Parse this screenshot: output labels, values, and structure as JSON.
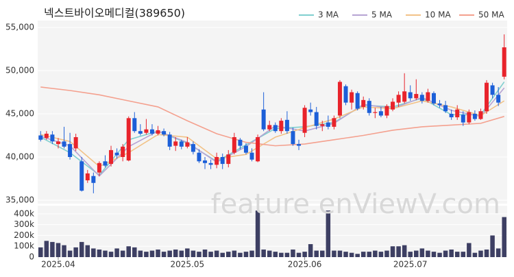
{
  "title": "넥스트바이오메디컬(389650)",
  "watermark": "feature.enViewV.com",
  "chart_data": [
    {
      "type": "candlestick",
      "up_color": "#e8232b",
      "down_color": "#1c5fd8",
      "ylim": [
        34600,
        55800
      ],
      "yticks": [
        {
          "value": 35000,
          "label": "35,000"
        },
        {
          "value": 40000,
          "label": "40,000"
        },
        {
          "value": 45000,
          "label": "45,000"
        },
        {
          "value": 50000,
          "label": "50,000"
        },
        {
          "value": 55000,
          "label": "55,000"
        }
      ],
      "grid": true,
      "legend": "top-right",
      "open": [
        42500,
        42200,
        42600,
        41500,
        41800,
        41500,
        41000,
        39500,
        37300,
        37800,
        38200,
        39500,
        39200,
        40500,
        40000,
        39600,
        44500,
        43000,
        42800,
        43200,
        42700,
        43000,
        42600,
        41300,
        41800,
        41200,
        41500,
        40500,
        39600,
        39300,
        39100,
        40000,
        39200,
        40500,
        42000,
        41300,
        40500,
        39500,
        45500,
        43200,
        43700,
        43000,
        44300,
        43000,
        41500,
        42800,
        45500,
        45200,
        43600,
        44000,
        43500,
        44800,
        48200,
        46300,
        47400,
        45800,
        46500,
        45100,
        45300,
        44800,
        45500,
        46300,
        46400,
        47500,
        46800,
        47200,
        46500,
        47400,
        46200,
        46000,
        45000,
        44600,
        44900,
        44000,
        45000,
        44400,
        45300,
        48300,
        47200,
        49300
      ],
      "high": [
        43000,
        43000,
        43000,
        42200,
        43500,
        42800,
        42700,
        40000,
        38500,
        38200,
        39500,
        40200,
        41300,
        41000,
        41500,
        44700,
        45200,
        43800,
        44400,
        43800,
        43600,
        43300,
        42900,
        42300,
        42000,
        42300,
        41800,
        40900,
        40000,
        39700,
        40500,
        40400,
        40800,
        42800,
        42200,
        41600,
        41000,
        42600,
        47500,
        44200,
        44000,
        44500,
        45300,
        43400,
        42000,
        46000,
        46300,
        45800,
        44200,
        44800,
        44800,
        48900,
        48400,
        47800,
        47600,
        47000,
        46800,
        45700,
        45800,
        46100,
        46800,
        47600,
        49700,
        48300,
        49000,
        47500,
        47900,
        47600,
        46600,
        46500,
        45500,
        46000,
        45300,
        45500,
        45400,
        45600,
        48900,
        48600,
        48100,
        54200
      ],
      "low": [
        41800,
        42000,
        41500,
        41000,
        41000,
        39700,
        40700,
        36000,
        37000,
        35800,
        37800,
        38800,
        38900,
        39800,
        39500,
        39500,
        42800,
        42500,
        42600,
        42500,
        42500,
        42400,
        40800,
        40700,
        40900,
        41000,
        40300,
        39300,
        38600,
        38600,
        38700,
        38600,
        38800,
        40300,
        40900,
        40300,
        39500,
        39400,
        43000,
        43000,
        42800,
        42700,
        42700,
        41300,
        40800,
        42300,
        44800,
        43200,
        43000,
        43200,
        43200,
        44500,
        46000,
        45500,
        45400,
        45500,
        44800,
        44500,
        44600,
        44500,
        45300,
        45800,
        46200,
        46500,
        46600,
        46200,
        46300,
        46000,
        45700,
        45100,
        44300,
        44300,
        43600,
        43800,
        44200,
        44300,
        45000,
        46800,
        45900,
        49000
      ],
      "close": [
        42000,
        42700,
        41800,
        41800,
        41200,
        40000,
        42300,
        36100,
        38100,
        37000,
        39300,
        39000,
        40800,
        40200,
        41200,
        44500,
        43000,
        42700,
        43200,
        42700,
        43100,
        42600,
        41200,
        41800,
        41200,
        41700,
        40600,
        39500,
        39300,
        39100,
        40000,
        39200,
        40300,
        42300,
        41300,
        40500,
        39700,
        42300,
        43200,
        43700,
        43000,
        44200,
        43000,
        41500,
        41300,
        45700,
        45200,
        43600,
        43800,
        43500,
        44500,
        48700,
        46300,
        47500,
        45600,
        46600,
        45100,
        45200,
        44800,
        45900,
        46400,
        47200,
        47600,
        46800,
        47300,
        46500,
        47500,
        46200,
        46000,
        45300,
        44600,
        45500,
        44000,
        45200,
        44400,
        45300,
        48600,
        47200,
        46300,
        52700
      ],
      "lines": [
        {
          "name": "3 MA",
          "color": "#7fcfcf",
          "x": [
            0,
            5,
            10,
            15,
            20,
            25,
            30,
            35,
            40,
            45,
            50,
            55,
            60,
            65,
            70,
            75,
            79
          ],
          "values": [
            42300,
            40500,
            37900,
            42000,
            43000,
            41600,
            39500,
            41400,
            43300,
            43500,
            44000,
            46000,
            45800,
            46800,
            44900,
            44900,
            48700
          ]
        },
        {
          "name": "5 MA",
          "color": "#b6a3d3",
          "x": [
            0,
            5,
            10,
            15,
            20,
            25,
            30,
            35,
            40,
            45,
            50,
            55,
            60,
            65,
            70,
            75,
            79
          ],
          "values": [
            42400,
            41300,
            37800,
            41200,
            43000,
            41700,
            39400,
            41200,
            43600,
            43000,
            43900,
            46100,
            45600,
            46900,
            45400,
            44700,
            48000
          ]
        },
        {
          "name": "10 MA",
          "color": "#f2c287",
          "x": [
            0,
            5,
            10,
            15,
            20,
            25,
            30,
            35,
            40,
            45,
            50,
            55,
            60,
            65,
            70,
            75,
            79
          ],
          "values": [
            42600,
            41800,
            38900,
            40500,
            42600,
            42300,
            39800,
            40300,
            42300,
            43400,
            44400,
            45800,
            45600,
            46500,
            45800,
            44800,
            46500
          ]
        },
        {
          "name": "50 MA",
          "color": "#f4a08e",
          "x": [
            0,
            5,
            10,
            15,
            20,
            25,
            30,
            35,
            40,
            45,
            50,
            55,
            60,
            65,
            70,
            75,
            79
          ],
          "values": [
            48100,
            47700,
            47200,
            46500,
            45800,
            44200,
            42700,
            41700,
            41300,
            41500,
            42000,
            42500,
            43100,
            43500,
            43700,
            43900,
            44700
          ]
        }
      ]
    },
    {
      "type": "bar",
      "color": "#3d3f63",
      "categories": [
        null,
        null,
        null,
        "2025.04",
        null,
        null,
        null,
        null,
        null,
        null,
        null,
        null,
        null,
        null,
        null,
        null,
        null,
        null,
        null,
        null,
        null,
        null,
        null,
        null,
        null,
        "2025.05",
        null,
        null,
        null,
        null,
        null,
        null,
        null,
        null,
        null,
        null,
        null,
        null,
        null,
        null,
        null,
        null,
        null,
        null,
        null,
        "2025.06",
        null,
        null,
        null,
        null,
        null,
        null,
        null,
        null,
        null,
        null,
        null,
        null,
        null,
        null,
        null,
        null,
        null,
        "2025.07",
        null,
        null,
        null,
        null,
        null,
        null,
        null,
        null,
        null,
        null,
        null,
        null,
        null,
        null,
        null,
        null
      ],
      "values": [
        90000,
        150000,
        140000,
        130000,
        110000,
        60000,
        90000,
        140000,
        110000,
        80000,
        70000,
        60000,
        50000,
        80000,
        60000,
        100000,
        90000,
        60000,
        50000,
        60000,
        70000,
        50000,
        60000,
        70000,
        60000,
        80000,
        60000,
        50000,
        70000,
        50000,
        60000,
        40000,
        50000,
        60000,
        40000,
        50000,
        60000,
        430000,
        70000,
        60000,
        50000,
        40000,
        40000,
        70000,
        40000,
        50000,
        120000,
        60000,
        60000,
        430000,
        60000,
        60000,
        50000,
        40000,
        30000,
        50000,
        50000,
        60000,
        50000,
        60000,
        100000,
        100000,
        110000,
        50000,
        60000,
        80000,
        60000,
        50000,
        40000,
        60000,
        70000,
        50000,
        50000,
        130000,
        40000,
        60000,
        70000,
        200000,
        80000,
        370000
      ],
      "ylim": [
        0,
        475000
      ],
      "yticks": [
        0,
        {
          "value": 100000,
          "label": "100k"
        },
        {
          "value": 200000,
          "label": "200k"
        },
        {
          "value": 300000,
          "label": "300k"
        },
        {
          "value": 400000,
          "label": "400k"
        }
      ]
    }
  ]
}
